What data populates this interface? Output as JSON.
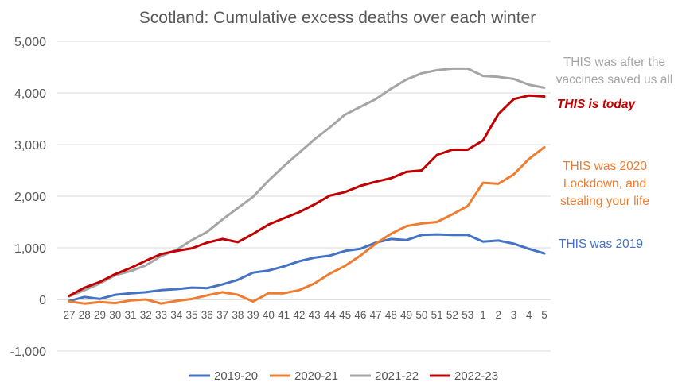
{
  "chart_data": {
    "type": "line",
    "title": "Scotland: Cumulative excess deaths over each winter",
    "xlabel": "",
    "ylabel": "",
    "ylim": [
      -1000,
      5000
    ],
    "yticks": [
      -1000,
      0,
      1000,
      2000,
      3000,
      4000,
      5000
    ],
    "ytick_labels": [
      "-1,000",
      "0",
      "1,000",
      "2,000",
      "3,000",
      "4,000",
      "5,000"
    ],
    "grid": true,
    "legend_position": "bottom",
    "categories": [
      "27",
      "28",
      "29",
      "30",
      "31",
      "32",
      "33",
      "34",
      "35",
      "36",
      "37",
      "38",
      "39",
      "40",
      "41",
      "42",
      "43",
      "44",
      "45",
      "46",
      "47",
      "48",
      "49",
      "50",
      "51",
      "52",
      "53",
      "1",
      "2",
      "3",
      "4",
      "5"
    ],
    "series": [
      {
        "name": "2019-20",
        "color": "#4472C4",
        "values": [
          -30,
          50,
          10,
          90,
          120,
          140,
          180,
          200,
          230,
          220,
          290,
          380,
          520,
          560,
          640,
          740,
          810,
          850,
          940,
          980,
          1100,
          1170,
          1150,
          1250,
          1260,
          1250,
          1250,
          1120,
          1140,
          1080,
          980,
          890
        ]
      },
      {
        "name": "2020-21",
        "color": "#ED7D31",
        "values": [
          -40,
          -80,
          -50,
          -70,
          -20,
          0,
          -80,
          -30,
          10,
          80,
          140,
          90,
          -40,
          120,
          120,
          180,
          310,
          500,
          650,
          850,
          1080,
          1270,
          1420,
          1470,
          1500,
          1650,
          1810,
          2260,
          2240,
          2420,
          2720,
          2950
        ]
      },
      {
        "name": "2021-22",
        "color": "#A5A5A5",
        "values": [
          60,
          180,
          310,
          470,
          550,
          660,
          840,
          960,
          1150,
          1310,
          1550,
          1770,
          1990,
          2300,
          2580,
          2840,
          3100,
          3330,
          3580,
          3730,
          3880,
          4080,
          4260,
          4380,
          4440,
          4470,
          4470,
          4330,
          4310,
          4270,
          4160,
          4100
        ]
      },
      {
        "name": "2022-23",
        "color": "#C00000",
        "values": [
          70,
          230,
          340,
          490,
          610,
          750,
          880,
          940,
          990,
          1100,
          1170,
          1110,
          1270,
          1450,
          1570,
          1690,
          1840,
          2010,
          2080,
          2200,
          2280,
          2350,
          2470,
          2500,
          2800,
          2900,
          2900,
          3080,
          3590,
          3880,
          3950,
          3930
        ]
      }
    ],
    "annotations": [
      {
        "lines": [
          "THIS was after the",
          "vaccines saved us all"
        ],
        "color": "#A5A5A5",
        "bold": false,
        "italic": false
      },
      {
        "lines": [
          "THIS is today"
        ],
        "color": "#C00000",
        "bold": true,
        "italic": true
      },
      {
        "lines": [
          "THIS was 2020",
          "Lockdown, and",
          "stealing your life"
        ],
        "color": "#ED7D31",
        "bold": false,
        "italic": false
      },
      {
        "lines": [
          "THIS was 2019"
        ],
        "color": "#4472C4",
        "bold": false,
        "italic": false
      }
    ]
  }
}
